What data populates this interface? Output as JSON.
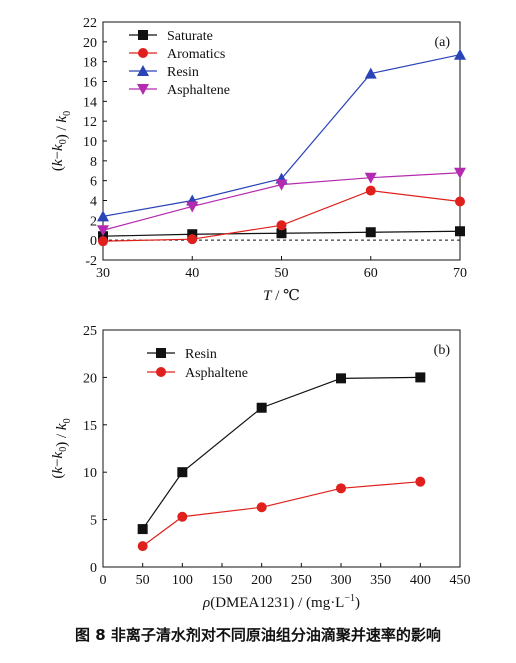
{
  "caption": "图 8   非离子清水剂对不同原油组分油滴聚并速率的影响",
  "chart_data": [
    {
      "type": "line",
      "panel_label": "(a)",
      "xlabel_italic": "T",
      "xlabel_rest": " / ℃",
      "ylabel": "(k−k0) / k0",
      "xlim": [
        30,
        70
      ],
      "ylim": [
        -2,
        22
      ],
      "xticks": [
        30,
        40,
        50,
        60,
        70
      ],
      "yticks": [
        -2,
        0,
        2,
        4,
        6,
        8,
        10,
        12,
        14,
        16,
        18,
        20,
        22
      ],
      "zero_line": "dashed",
      "legend": "top-left",
      "x": [
        30,
        40,
        50,
        60,
        70
      ],
      "series": [
        {
          "name": "Saturate",
          "color": "#111111",
          "marker": "square",
          "values": [
            0.4,
            0.6,
            0.7,
            0.8,
            0.9
          ]
        },
        {
          "name": "Aromatics",
          "color": "#e0201c",
          "marker": "circle",
          "values": [
            -0.1,
            0.1,
            1.5,
            5.0,
            3.9
          ]
        },
        {
          "name": "Resin",
          "color": "#2a44b8",
          "marker": "triangle-up",
          "values": [
            2.4,
            4.0,
            6.2,
            16.8,
            18.7
          ]
        },
        {
          "name": "Asphaltene",
          "color": "#b52bb0",
          "marker": "triangle-down",
          "values": [
            1.0,
            3.4,
            5.6,
            6.3,
            6.8
          ]
        }
      ]
    },
    {
      "type": "line",
      "panel_label": "(b)",
      "xlabel_rho": "ρ",
      "xlabel_rest": "(DMEA1231) / (mg·L",
      "xlabel_sup": "−1",
      "xlabel_end": ")",
      "ylabel": "(k−k0) / k0",
      "xlim": [
        0,
        450
      ],
      "ylim": [
        0,
        25
      ],
      "xticks": [
        0,
        50,
        100,
        150,
        200,
        250,
        300,
        350,
        400,
        450
      ],
      "yticks": [
        0,
        5,
        10,
        15,
        20,
        25
      ],
      "legend": "top-left",
      "x": [
        50,
        100,
        200,
        300,
        400
      ],
      "series": [
        {
          "name": "Resin",
          "color": "#111111",
          "marker": "square",
          "values": [
            4.0,
            10.0,
            16.8,
            19.9,
            20.0
          ]
        },
        {
          "name": "Asphaltene",
          "color": "#e0201c",
          "marker": "circle",
          "values": [
            2.2,
            5.3,
            6.3,
            8.3,
            9.0
          ]
        }
      ]
    }
  ]
}
